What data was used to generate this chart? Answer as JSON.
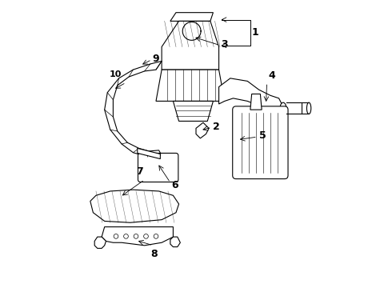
{
  "background_color": "#ffffff",
  "line_color": "#000000",
  "figsize": [
    4.9,
    3.6
  ],
  "dpi": 100
}
